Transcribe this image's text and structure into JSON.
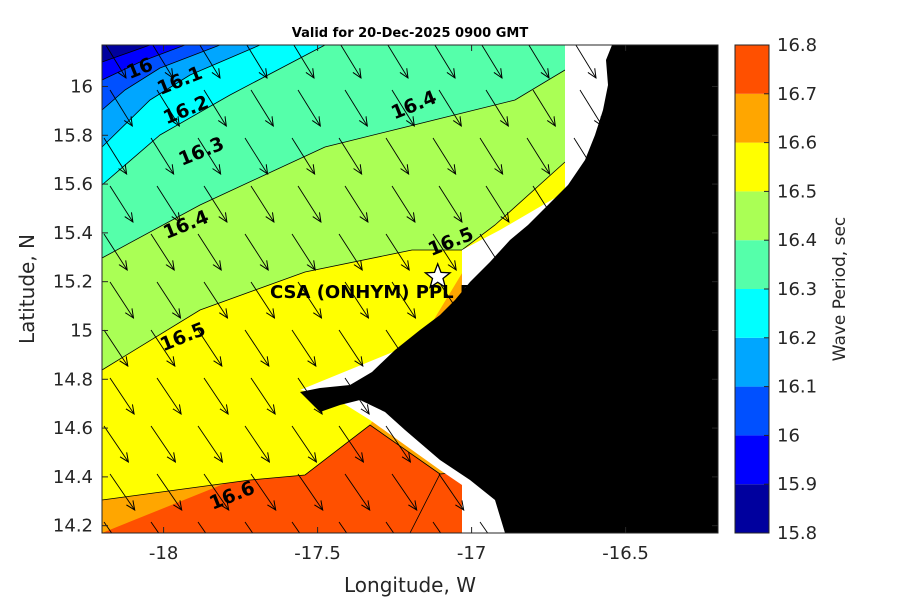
{
  "chart_data": {
    "type": "contour",
    "title": "Valid for 20-Dec-2025 0900 GMT",
    "xlabel": "Longitude, W",
    "ylabel": "Latitude, N",
    "xlim": [
      -18.2,
      -16.2
    ],
    "ylim": [
      14.17,
      16.17
    ],
    "xticks": [
      -18,
      -17.5,
      -17,
      -16.5
    ],
    "xtick_labels": [
      "-18",
      "-17.5",
      "-17",
      "-16.5"
    ],
    "yticks": [
      14.2,
      14.4,
      14.6,
      14.8,
      15,
      15.2,
      15.4,
      15.6,
      15.8,
      16
    ],
    "ytick_labels": [
      "14.2",
      "14.4",
      "14.6",
      "14.8",
      "15",
      "15.2",
      "15.4",
      "15.6",
      "15.8",
      "16"
    ],
    "colorbar": {
      "label": "Wave Period, sec",
      "levels": [
        15.8,
        15.9,
        16.0,
        16.1,
        16.2,
        16.3,
        16.4,
        16.5,
        16.6,
        16.7,
        16.8
      ],
      "tick_labels": [
        "15.8",
        "15.9",
        "16",
        "16.1",
        "16.2",
        "16.3",
        "16.4",
        "16.5",
        "16.6",
        "16.7",
        "16.8"
      ],
      "colors": [
        "#00009e",
        "#0000ff",
        "#0050ff",
        "#00a6ff",
        "#00ffff",
        "#55ffaa",
        "#aaff55",
        "#ffff00",
        "#ffa600",
        "#ff5000"
      ]
    },
    "contour_labels": [
      {
        "text": "16",
        "lon": -18.07,
        "lat": 16.05
      },
      {
        "text": "16.1",
        "lon": -17.94,
        "lat": 16.0
      },
      {
        "text": "16.2",
        "lon": -17.92,
        "lat": 15.88
      },
      {
        "text": "16.3",
        "lon": -17.87,
        "lat": 15.71
      },
      {
        "text": "16.4",
        "lon": -17.18,
        "lat": 15.9
      },
      {
        "text": "16.4",
        "lon": -17.92,
        "lat": 15.41
      },
      {
        "text": "16.5",
        "lon": -17.06,
        "lat": 15.34
      },
      {
        "text": "16.5",
        "lon": -17.93,
        "lat": 14.95
      },
      {
        "text": "16.6",
        "lon": -17.77,
        "lat": 14.3
      }
    ],
    "station": {
      "name": "CSA (ONHYM) PPL EP",
      "lon": -17.11,
      "lat": 15.22
    },
    "arrows": "wave direction vectors (NW to SE) over the ocean"
  }
}
